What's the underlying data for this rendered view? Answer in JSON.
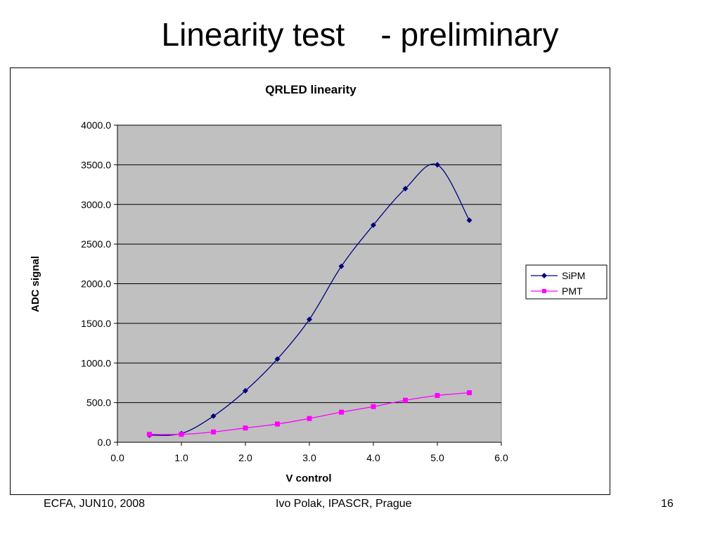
{
  "slide": {
    "title": "Linearity test    - preliminary"
  },
  "footer": {
    "left": "ECFA, JUN10, 2008",
    "center": "Ivo Polak, IPASCR, Prague",
    "page_number": "16"
  },
  "chart_data": {
    "type": "line",
    "title": "QRLED linearity",
    "xlabel": "V control",
    "ylabel": "ADC signal",
    "xlim": [
      0,
      6
    ],
    "ylim": [
      0,
      4000
    ],
    "x_ticks": [
      "0.0",
      "1.0",
      "2.0",
      "3.0",
      "4.0",
      "5.0",
      "6.0"
    ],
    "y_ticks": [
      "0.0",
      "500.0",
      "1000.0",
      "1500.0",
      "2000.0",
      "2500.0",
      "3000.0",
      "3500.0",
      "4000.0"
    ],
    "grid": "horizontal",
    "legend_position": "right",
    "plot_background": "#c0c0c0",
    "series": [
      {
        "name": "SiPM",
        "color": "#000080",
        "marker": "diamond",
        "x": [
          0.5,
          1.0,
          1.5,
          2.0,
          2.5,
          3.0,
          3.5,
          4.0,
          4.5,
          5.0,
          5.5
        ],
        "y": [
          90,
          110,
          330,
          650,
          1050,
          1550,
          2220,
          2740,
          3200,
          3500,
          2800
        ]
      },
      {
        "name": "PMT",
        "color": "#ff00ff",
        "marker": "square",
        "x": [
          0.5,
          1.0,
          1.5,
          2.0,
          2.5,
          3.0,
          3.5,
          4.0,
          4.5,
          5.0,
          5.5
        ],
        "y": [
          100,
          100,
          130,
          180,
          230,
          300,
          380,
          450,
          530,
          590,
          625
        ]
      }
    ]
  }
}
